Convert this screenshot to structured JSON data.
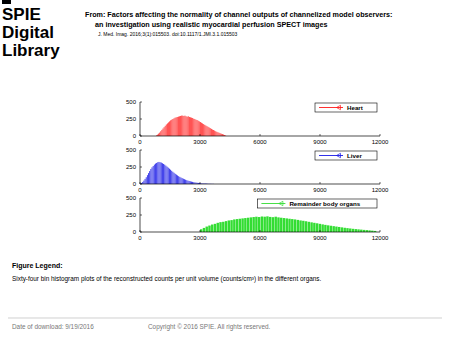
{
  "header": {
    "logo": [
      "SPIE",
      "Digital",
      "Library"
    ],
    "from": "From: Factors affecting the normality of channel outputs of channelized model observers:",
    "from_line2": "an investigation using realistic myocardial perfusion SPECT images",
    "citation": "J. Med. Imag. 2016;3(1):015503. doi:10.1117/1.JMI.3.1.015503"
  },
  "chart_data": [
    {
      "type": "histogram",
      "legend": "upper right",
      "xlim": [
        0,
        12000
      ],
      "xticks": [
        0,
        3000,
        6000,
        9000,
        12000
      ],
      "ylim": [
        0,
        500
      ],
      "yticks": [
        0,
        250,
        500
      ],
      "bins": [
        800,
        855,
        910,
        965,
        1020,
        1075,
        1130,
        1185,
        1240,
        1295,
        1350,
        1405,
        1460,
        1515,
        1570,
        1625,
        1680,
        1735,
        1790,
        1845,
        1900,
        1955,
        2010,
        2065,
        2120,
        2175,
        2230,
        2285,
        2340,
        2395,
        2450,
        2505,
        2560,
        2615,
        2670,
        2725,
        2780,
        2835,
        2890,
        2945,
        3000,
        3055,
        3110,
        3165,
        3220,
        3275,
        3330,
        3385,
        3440,
        3495,
        3550,
        3605,
        3660,
        3715,
        3770,
        3825,
        3880,
        3935,
        3990,
        4045,
        4100,
        4155,
        4210,
        4265,
        4320
      ],
      "series": [
        {
          "name": "Heart",
          "color": "#ff1a1a",
          "marker": "triangle",
          "line_style": "solid",
          "values": [
            10,
            20,
            35,
            50,
            70,
            90,
            110,
            130,
            150,
            170,
            185,
            200,
            215,
            230,
            240,
            250,
            260,
            270,
            275,
            280,
            285,
            290,
            295,
            300,
            300,
            295,
            300,
            290,
            285,
            290,
            280,
            275,
            270,
            265,
            255,
            250,
            240,
            235,
            225,
            215,
            205,
            195,
            185,
            175,
            165,
            155,
            145,
            135,
            125,
            115,
            105,
            95,
            88,
            80,
            70,
            62,
            55,
            48,
            40,
            34,
            28,
            22,
            15,
            8
          ]
        }
      ]
    },
    {
      "type": "histogram",
      "legend": "upper right",
      "xlim": [
        0,
        12000
      ],
      "xticks": [
        0,
        3000,
        6000,
        9000,
        12000
      ],
      "ylim": [
        0,
        500
      ],
      "yticks": [
        0,
        250,
        500
      ],
      "bins": [
        0,
        58,
        116,
        174,
        232,
        290,
        348,
        406,
        464,
        522,
        580,
        638,
        696,
        754,
        812,
        870,
        928,
        986,
        1044,
        1102,
        1160,
        1218,
        1276,
        1334,
        1392,
        1450,
        1508,
        1566,
        1624,
        1682,
        1740,
        1798,
        1856,
        1914,
        1972,
        2030,
        2088,
        2146,
        2204,
        2262,
        2320,
        2378,
        2436,
        2494,
        2552,
        2610,
        2668,
        2726,
        2784,
        2842,
        2900,
        2958,
        3016,
        3074,
        3132,
        3190,
        3248,
        3306,
        3364,
        3422,
        3480,
        3538,
        3596,
        3654,
        3712
      ],
      "series": [
        {
          "name": "Liver",
          "color": "#1a1ae6",
          "marker": "triangle",
          "line_style": "solid",
          "values": [
            5,
            15,
            30,
            50,
            75,
            100,
            130,
            160,
            190,
            220,
            245,
            265,
            285,
            300,
            310,
            320,
            325,
            320,
            315,
            305,
            295,
            285,
            270,
            255,
            240,
            225,
            210,
            195,
            180,
            165,
            150,
            138,
            126,
            115,
            105,
            95,
            86,
            78,
            70,
            63,
            56,
            50,
            45,
            40,
            35,
            31,
            27,
            24,
            21,
            18,
            16,
            14,
            12,
            10,
            9,
            8,
            7,
            6,
            5,
            4,
            4,
            3,
            2,
            2
          ]
        }
      ]
    },
    {
      "type": "histogram",
      "legend": "upper right",
      "xlim": [
        0,
        12000
      ],
      "xticks": [
        0,
        3000,
        6000,
        9000,
        12000
      ],
      "ylim": [
        0,
        500
      ],
      "yticks": [
        0,
        250,
        500
      ],
      "bins": [
        3000,
        3138,
        3276,
        3414,
        3552,
        3690,
        3828,
        3966,
        4104,
        4242,
        4380,
        4518,
        4656,
        4794,
        4932,
        5070,
        5208,
        5346,
        5484,
        5622,
        5760,
        5898,
        6036,
        6174,
        6312,
        6450,
        6588,
        6726,
        6864,
        7002,
        7140,
        7278,
        7416,
        7554,
        7692,
        7830,
        7968,
        8106,
        8244,
        8382,
        8520,
        8658,
        8796,
        8934,
        9072,
        9210,
        9348,
        9486,
        9624,
        9762,
        9900,
        10038,
        10176,
        10314,
        10452,
        10590,
        10728,
        10866,
        11004,
        11142,
        11280,
        11418,
        11556,
        11694,
        11832
      ],
      "series": [
        {
          "name": "Remainder body organs",
          "color": "#33dd33",
          "marker": "triangle",
          "line_style": "solid",
          "values": [
            40,
            60,
            80,
            95,
            110,
            120,
            135,
            145,
            150,
            160,
            170,
            175,
            185,
            190,
            195,
            200,
            205,
            210,
            215,
            220,
            225,
            220,
            228,
            225,
            230,
            222,
            218,
            225,
            215,
            210,
            205,
            200,
            195,
            190,
            185,
            178,
            170,
            165,
            158,
            150,
            142,
            135,
            128,
            120,
            112,
            105,
            98,
            92,
            86,
            80,
            74,
            68,
            62,
            57,
            52,
            47,
            43,
            39,
            35,
            31,
            28,
            24,
            20,
            16
          ]
        }
      ]
    }
  ],
  "figure_legend": {
    "heading": "Figure Legend:",
    "text": "Sixty-four bin histogram plots of the reconstructed counts per unit volume (counts/cm³) in the different organs."
  },
  "footer": {
    "date": "Date of download:  9/19/2016",
    "copyright": "Copyright © 2016 SPIE. All rights reserved."
  }
}
